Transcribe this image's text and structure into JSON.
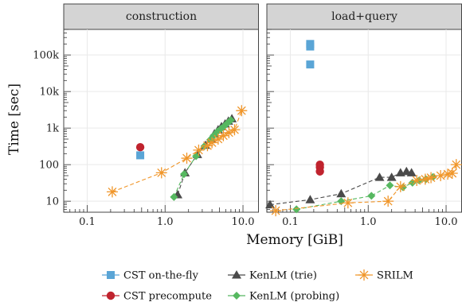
{
  "chart_data": {
    "type": "scatter",
    "xlabel": "Memory [GiB]",
    "ylabel": "Time [sec]",
    "xscale": "log",
    "yscale": "log",
    "xlim": [
      0.05,
      16
    ],
    "ylim": [
      5,
      500000
    ],
    "xticks": [
      {
        "v": 0.1,
        "label": "0.1"
      },
      {
        "v": 1,
        "label": "1.0"
      },
      {
        "v": 10,
        "label": "10.0"
      }
    ],
    "yticks": [
      {
        "v": 10,
        "label": "10"
      },
      {
        "v": 100,
        "label": "100"
      },
      {
        "v": 1000,
        "label": "1k"
      },
      {
        "v": 10000,
        "label": "10k"
      },
      {
        "v": 100000,
        "label": "100k"
      }
    ],
    "grid": true,
    "legend_position": "bottom",
    "colors": {
      "cst_on_the_fly": "#5aa5d6",
      "cst_precompute": "#c0232e",
      "kenlm_trie": "#4a4a4a",
      "kenlm_probing": "#56b860",
      "srilm": "#f0962a"
    },
    "panels": [
      {
        "name": "construction",
        "series": [
          {
            "key": "cst_on_the_fly",
            "points": [
              [
                0.48,
                180
              ]
            ]
          },
          {
            "key": "cst_precompute",
            "points": [
              [
                0.48,
                300
              ]
            ]
          },
          {
            "key": "kenlm_trie",
            "points": [
              [
                1.45,
                15
              ],
              [
                1.8,
                60
              ],
              [
                2.6,
                190
              ],
              [
                3.3,
                340
              ],
              [
                3.9,
                520
              ],
              [
                4.3,
                700
              ],
              [
                4.8,
                900
              ],
              [
                5.3,
                1100
              ],
              [
                5.9,
                1300
              ],
              [
                6.5,
                1550
              ],
              [
                7.2,
                1800
              ]
            ]
          },
          {
            "key": "kenlm_probing",
            "points": [
              [
                1.3,
                13
              ],
              [
                1.75,
                55
              ],
              [
                2.5,
                170
              ],
              [
                3.2,
                320
              ],
              [
                3.8,
                480
              ],
              [
                4.2,
                620
              ],
              [
                4.7,
                800
              ],
              [
                5.2,
                950
              ],
              [
                5.8,
                1150
              ],
              [
                6.4,
                1400
              ],
              [
                7.0,
                1650
              ]
            ]
          },
          {
            "key": "srilm",
            "points": [
              [
                0.21,
                18
              ],
              [
                0.9,
                60
              ],
              [
                1.9,
                150
              ],
              [
                2.7,
                250
              ],
              [
                3.5,
                330
              ],
              [
                4.0,
                400
              ],
              [
                4.8,
                500
              ],
              [
                5.6,
                620
              ],
              [
                6.6,
                750
              ],
              [
                7.8,
                900
              ],
              [
                9.6,
                3000
              ]
            ]
          }
        ]
      },
      {
        "name": "load+query",
        "series": [
          {
            "key": "cst_on_the_fly",
            "points": [
              [
                0.18,
                55000
              ],
              [
                0.18,
                170000
              ],
              [
                0.18,
                200000
              ]
            ]
          },
          {
            "key": "cst_precompute",
            "points": [
              [
                0.24,
                65
              ],
              [
                0.24,
                85
              ],
              [
                0.24,
                100
              ]
            ]
          },
          {
            "key": "kenlm_trie",
            "points": [
              [
                0.055,
                8
              ],
              [
                0.18,
                11
              ],
              [
                0.45,
                16
              ],
              [
                1.4,
                45
              ],
              [
                2.0,
                45
              ],
              [
                2.6,
                60
              ],
              [
                3.1,
                65
              ],
              [
                3.6,
                60
              ]
            ]
          },
          {
            "key": "kenlm_probing",
            "points": [
              [
                0.12,
                6
              ],
              [
                0.45,
                10
              ],
              [
                1.1,
                14
              ],
              [
                1.9,
                27
              ],
              [
                2.8,
                24
              ],
              [
                3.7,
                32
              ],
              [
                4.5,
                37
              ],
              [
                5.5,
                40
              ],
              [
                6.8,
                46
              ]
            ]
          },
          {
            "key": "srilm",
            "points": [
              [
                0.065,
                5.5
              ],
              [
                0.55,
                9
              ],
              [
                1.8,
                10
              ],
              [
                2.6,
                25
              ],
              [
                4.2,
                37
              ],
              [
                5.4,
                40
              ],
              [
                6.4,
                44
              ],
              [
                8.5,
                50
              ],
              [
                10.5,
                55
              ],
              [
                12.0,
                58
              ],
              [
                13.5,
                100
              ]
            ]
          }
        ]
      }
    ],
    "legend": [
      {
        "key": "cst_on_the_fly",
        "label": "CST on-the-fly",
        "marker": "square"
      },
      {
        "key": "kenlm_trie",
        "label": "KenLM (trie)",
        "marker": "triangle"
      },
      {
        "key": "srilm",
        "label": "SRILM",
        "marker": "asterisk"
      },
      {
        "key": "cst_precompute",
        "label": "CST precompute",
        "marker": "circle"
      },
      {
        "key": "kenlm_probing",
        "label": "KenLM (probing)",
        "marker": "diamond"
      }
    ]
  }
}
